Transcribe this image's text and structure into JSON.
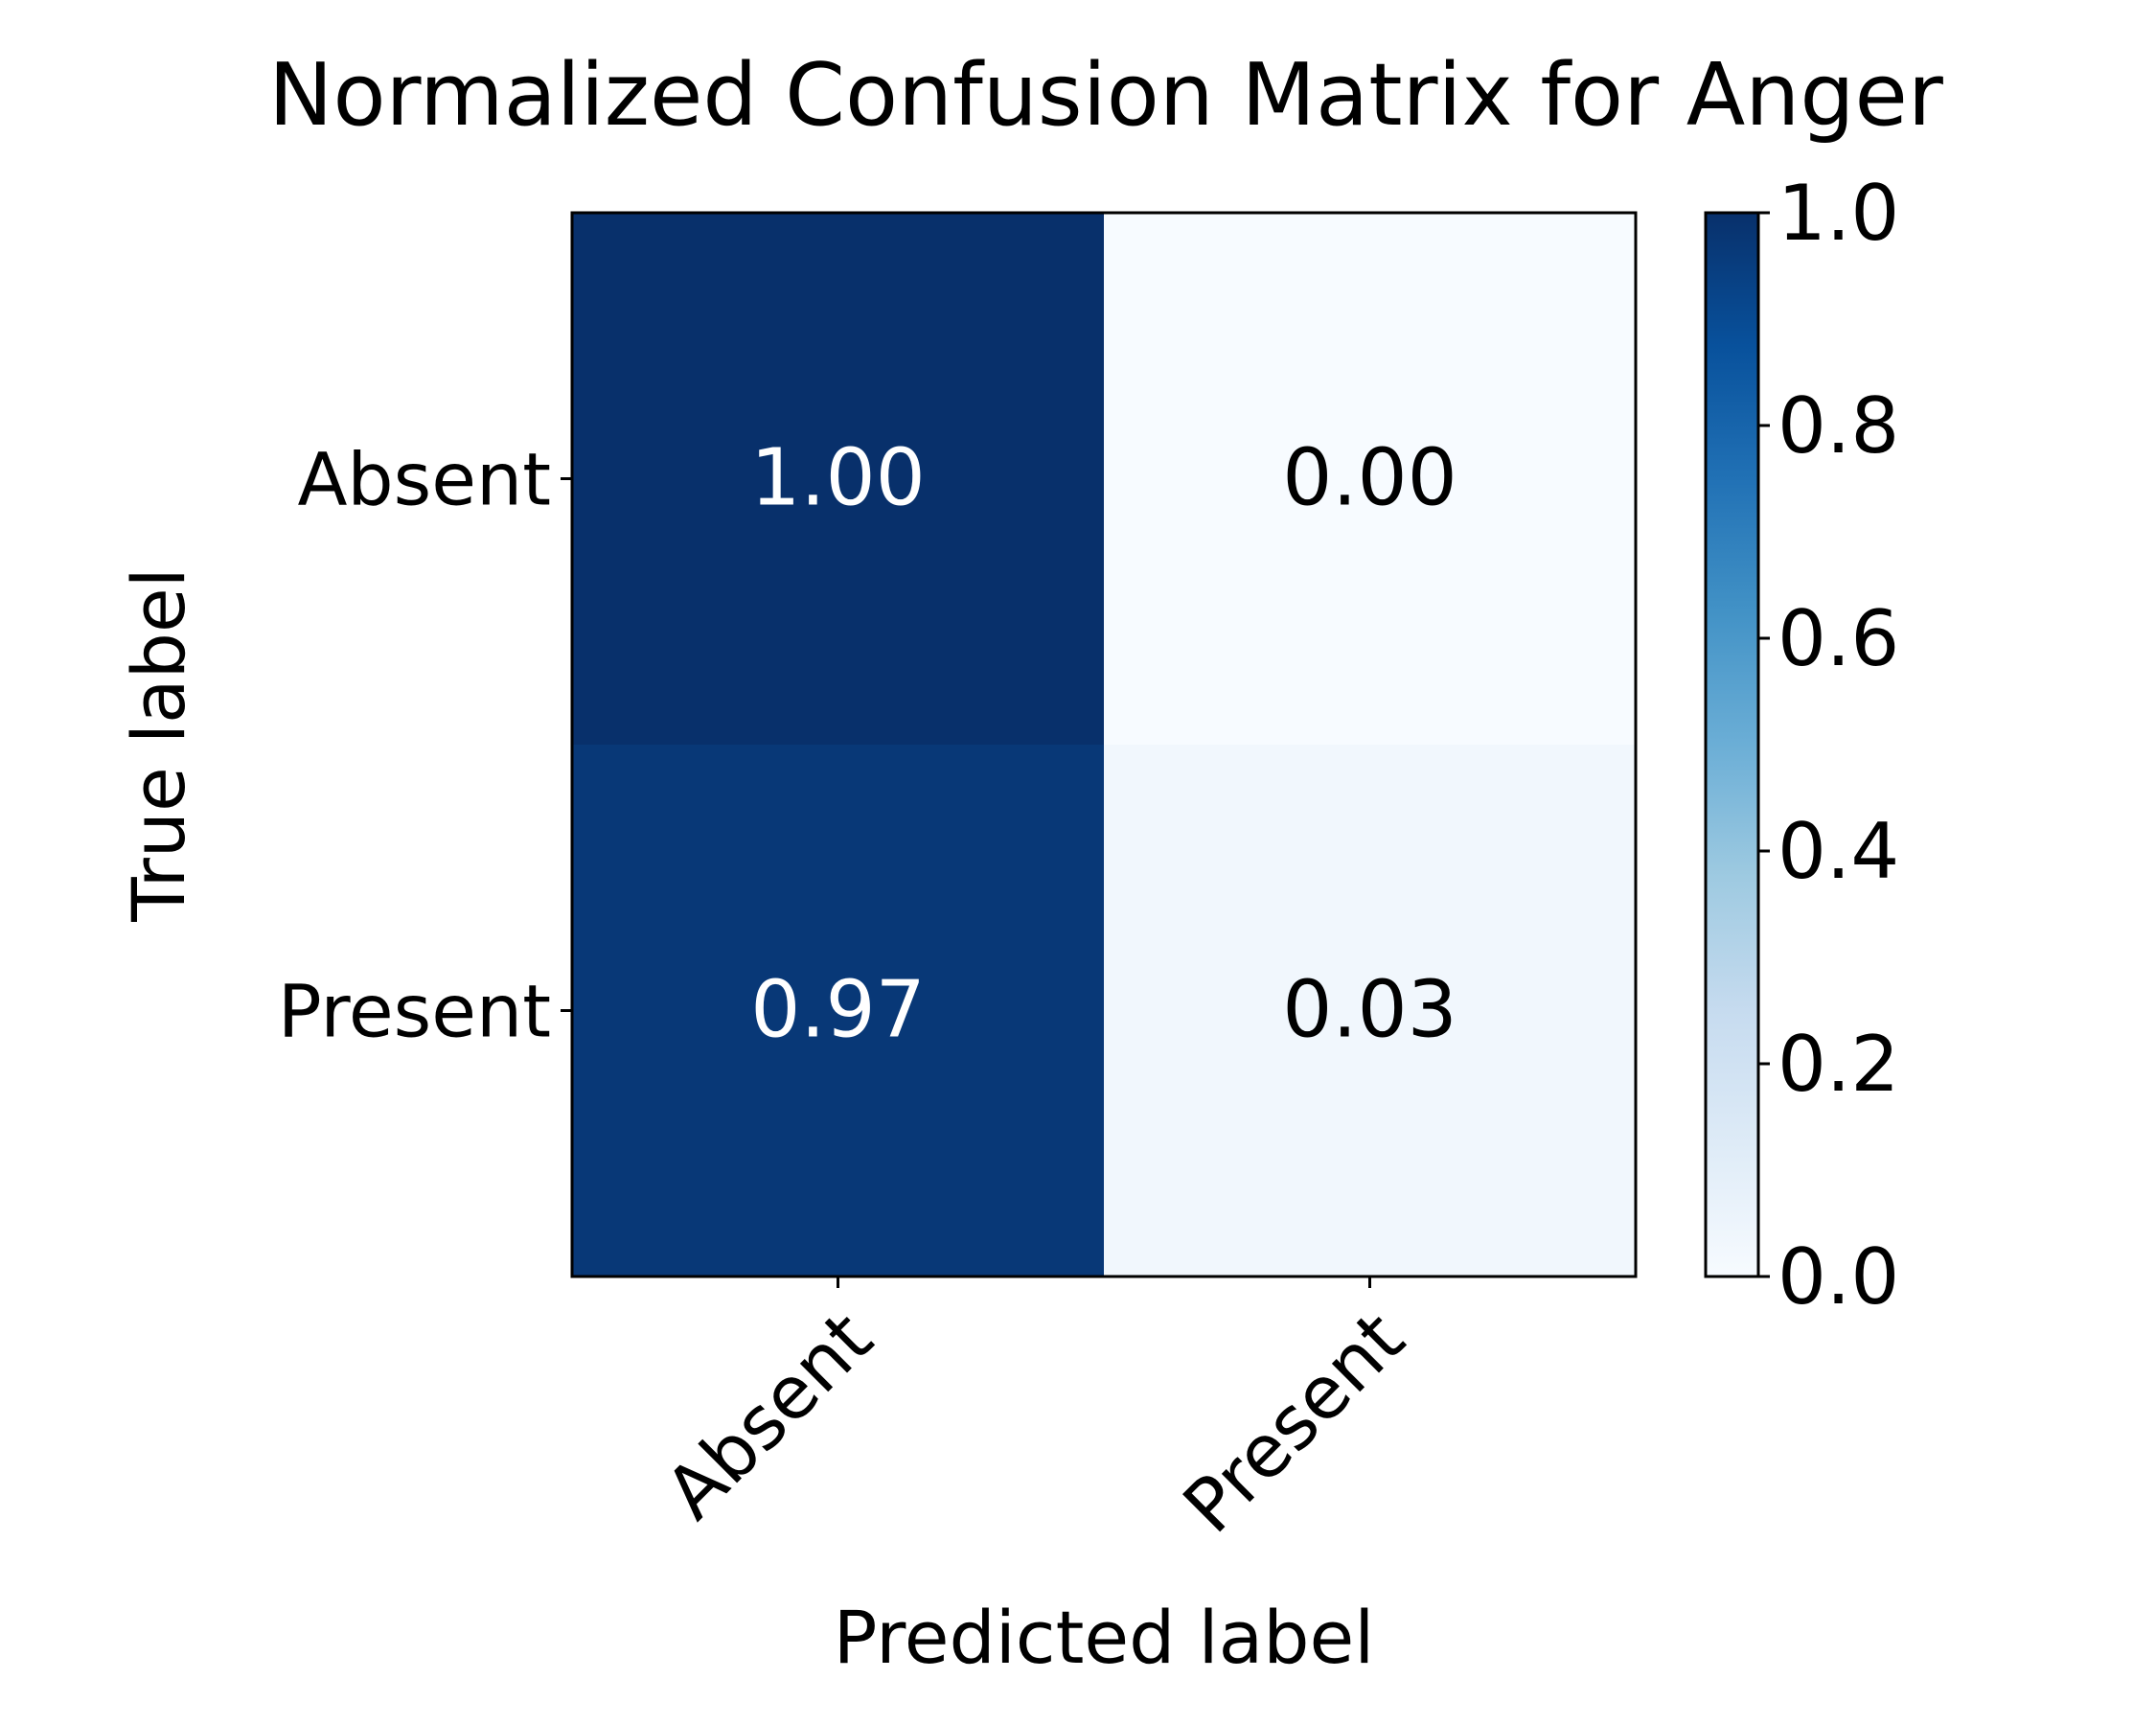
{
  "chart_data": {
    "type": "heatmap",
    "title": "Normalized Confusion Matrix for Anger",
    "xlabel": "Predicted label",
    "ylabel": "True label",
    "x_categories": [
      "Absent",
      "Present"
    ],
    "y_categories": [
      "Absent",
      "Present"
    ],
    "values": [
      [
        1.0,
        0.0
      ],
      [
        0.97,
        0.03
      ]
    ],
    "value_labels": [
      [
        "1.00",
        "0.00"
      ],
      [
        "0.97",
        "0.03"
      ]
    ],
    "colormap": "Blues",
    "colorbar": {
      "range": [
        0.0,
        1.0
      ],
      "ticks": [
        "0.0",
        "0.2",
        "0.4",
        "0.6",
        "0.8",
        "1.0"
      ]
    },
    "text_colors": {
      "dark_cell": "#ffffff",
      "light_cell": "#000000"
    }
  }
}
